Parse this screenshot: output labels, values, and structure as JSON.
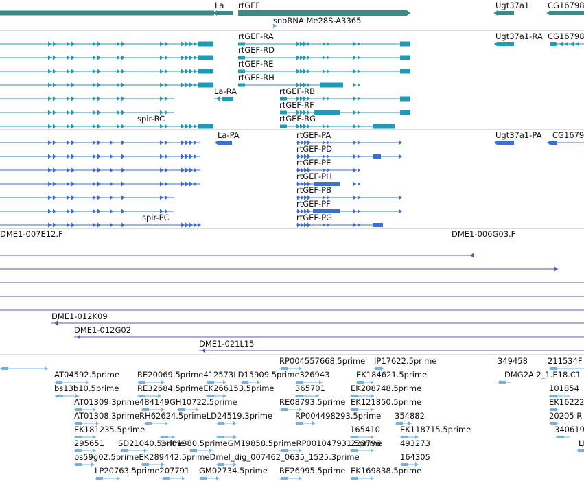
{
  "colors": {
    "gene": "#3a8a88",
    "transcript": "#1f9bb5",
    "protein": "#3b6fd0",
    "clone": "#6b4fb0",
    "est": "#7ab0d8",
    "separator": "#b8b8b8"
  },
  "icons": {
    "strand_plus": "triangle-right-glyph",
    "strand_minus": "triangle-left-glyph"
  },
  "tracks": {
    "genes": {
      "labels": [
        "La",
        "rtGEF",
        "snoRNA:Me28S-A3365",
        "Ugt37a1",
        "CG16798"
      ]
    },
    "transcripts": {
      "labels": [
        "rtGEF-RA",
        "Ugt37a1-RA",
        "CG16798",
        "rtGEF-RD",
        "rtGEF-RE",
        "rtGEF-RH",
        "La-RA",
        "rtGEF-RB",
        "rtGEF-RF",
        "spir-RC",
        "rtGEF-RG"
      ]
    },
    "proteins": {
      "labels": [
        "La-PA",
        "rtGEF-PA",
        "Ugt37a1-PA",
        "CG1679",
        "rtGEF-PD",
        "rtGEF-PE",
        "rtGEF-PH",
        "rtGEF-PB",
        "rtGEF-PF",
        "spir-PC",
        "rtGEF-PG"
      ]
    },
    "clones": {
      "labels": [
        "DME1-007E12.F",
        "DME1-006G03.F",
        "DME1-012K09",
        "DME1-012G02",
        "DME1-021L15"
      ]
    },
    "ests": {
      "labels": [
        "RP004557668.5prime",
        "IP17622.5prime",
        "349458",
        "211534F",
        "AT04592.5prime",
        "RE20069.5prime412573LD15909.5prime326943",
        "EK184621.5prime",
        "DMG2A.2_1.E18.C1",
        "bs13b10.5prime",
        "RE32684.5primeEK266153.5prime",
        "365701",
        "EK208748.5prime",
        "101854",
        "AT01309.3prime484149GH10722.5prime",
        "RE08793.5prime",
        "EK121850.5prime",
        "EK16222",
        "AT01308.3primeRH62624.5primeLD24519.3prime",
        "RP004498293.5prime",
        "354882",
        "20205 R",
        "EK181235.5prime",
        "165410",
        "EK118715.5prime",
        "340619",
        "295651",
        "SD21040.5prime",
        "GH01380.5primeGM19858.5primeRP001047931.5prime",
        "228796",
        "493273",
        "LI",
        "bs59g02.5primeEK289442.5primeDmel_dig_007462_0635_1525.3prime",
        "164305",
        "LP20763.5prime207791",
        "GM02734.5prime",
        "RE26995.5prime",
        "EK169838.5prime"
      ]
    }
  }
}
